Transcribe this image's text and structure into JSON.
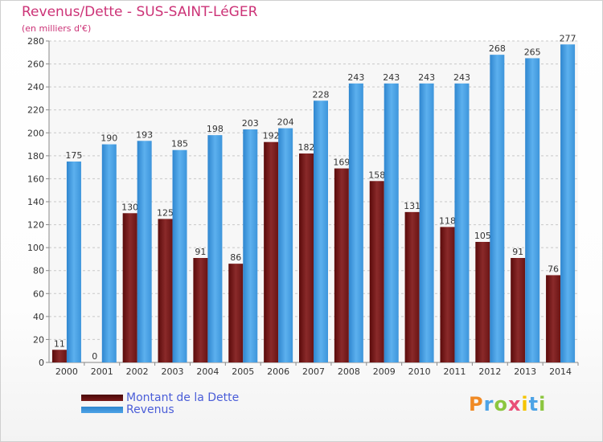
{
  "chart_data": {
    "type": "bar",
    "title": "Revenus/Dette - SUS-SAINT-LéGER",
    "subtitle": "(en milliers d'€)",
    "categories": [
      "2000",
      "2001",
      "2002",
      "2003",
      "2004",
      "2005",
      "2006",
      "2007",
      "2008",
      "2009",
      "2010",
      "2011",
      "2012",
      "2013",
      "2014"
    ],
    "series": [
      {
        "name": "Montant de la Dette",
        "values": [
          11,
          0,
          130,
          125,
          91,
          86,
          192,
          182,
          169,
          158,
          131,
          118,
          105,
          91,
          76
        ],
        "color": "#7a1a1a"
      },
      {
        "name": "Revenus",
        "values": [
          175,
          190,
          193,
          185,
          198,
          203,
          204,
          228,
          243,
          243,
          243,
          243,
          268,
          265,
          277
        ],
        "color": "#4da3e6"
      }
    ],
    "ylim": [
      0,
      280
    ],
    "yticks": [
      0,
      20,
      40,
      60,
      80,
      100,
      120,
      140,
      160,
      180,
      200,
      220,
      240,
      260,
      280
    ],
    "grid": true,
    "legend_position": "bottom-left"
  },
  "logo": {
    "text": "Proxiti",
    "letters": [
      "P",
      "r",
      "o",
      "x",
      "i",
      "t",
      "i"
    ],
    "colors": [
      "#f08a24",
      "#4da3e6",
      "#8cc63f",
      "#e94e77",
      "#f5c400",
      "#4da3e6",
      "#8cc63f"
    ]
  }
}
